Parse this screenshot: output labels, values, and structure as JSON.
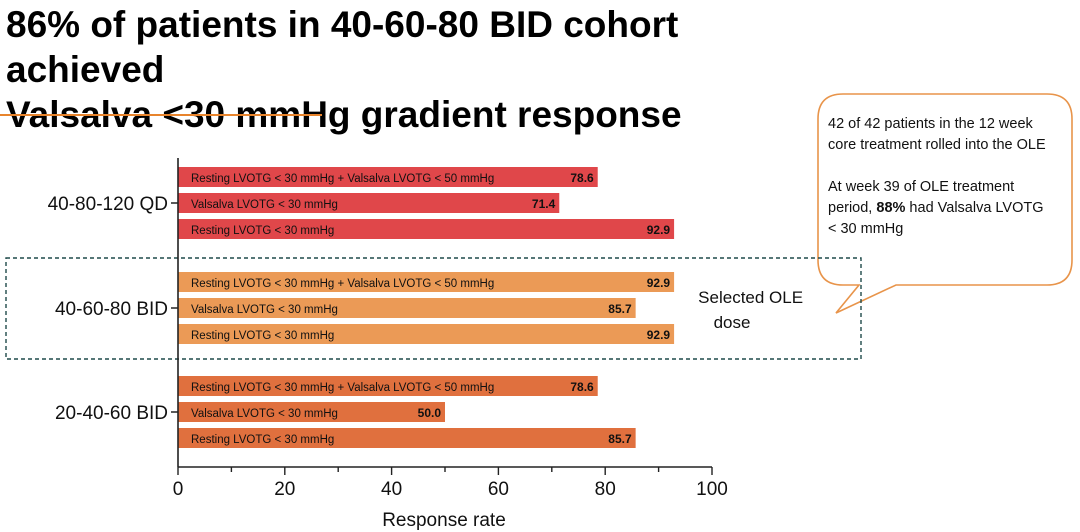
{
  "title_lines": [
    "86% of patients in 40-60-80 BID cohort achieved",
    "Valsalva <30 mmHg gradient response"
  ],
  "callout": {
    "text1": "42 of 42 patients in the 12 week core treatment rolled into the OLE",
    "text2_before": "At week 39 of OLE treatment period, ",
    "text2_bold": "88%",
    "text2_after": " had Valsalva LVOTG < 30 mmHg"
  },
  "highlight_box": {
    "label_lines": [
      "Selected OLE",
      "dose"
    ]
  },
  "colors": {
    "accent_orange": "#e8842c",
    "cohort_red": "#e0474a",
    "cohort_orange": "#eb9a56",
    "cohort_burnt": "#e0703e"
  },
  "chart_data": {
    "type": "bar",
    "orientation": "horizontal",
    "xlabel": "Response rate",
    "xlim": [
      0,
      100
    ],
    "xticks": [
      0,
      20,
      40,
      60,
      80,
      100
    ],
    "groups": [
      {
        "name": "40-80-120 QD",
        "color": "#e0474a",
        "bars": [
          {
            "label": "Resting LVOTG < 30 mmHg  + Valsalva LVOTG < 50 mmHg",
            "value": 78.6,
            "value_label": "78.6"
          },
          {
            "label": "Valsalva LVOTG < 30 mmHg",
            "value": 71.4,
            "value_label": "71.4"
          },
          {
            "label": "Resting LVOTG < 30 mmHg",
            "value": 92.9,
            "value_label": "92.9"
          }
        ]
      },
      {
        "name": "40-60-80 BID",
        "color": "#eb9a56",
        "bars": [
          {
            "label": "Resting LVOTG < 30 mmHg  + Valsalva LVOTG < 50 mmHg",
            "value": 92.9,
            "value_label": "92.9"
          },
          {
            "label": "Valsalva LVOTG < 30 mmHg",
            "value": 85.7,
            "value_label": "85.7"
          },
          {
            "label": "Resting LVOTG < 30 mmHg",
            "value": 92.9,
            "value_label": "92.9"
          }
        ]
      },
      {
        "name": "20-40-60 BID",
        "color": "#e0703e",
        "bars": [
          {
            "label": "Resting LVOTG < 30 mmHg + Valsalva LVOTG < 50 mmHg",
            "value": 78.6,
            "value_label": "78.6"
          },
          {
            "label": "Valsalva LVOTG < 30 mmHg",
            "value": 50.0,
            "value_label": "50.0"
          },
          {
            "label": "Resting LVOTG < 30 mmHg",
            "value": 85.7,
            "value_label": "85.7"
          }
        ]
      }
    ]
  }
}
